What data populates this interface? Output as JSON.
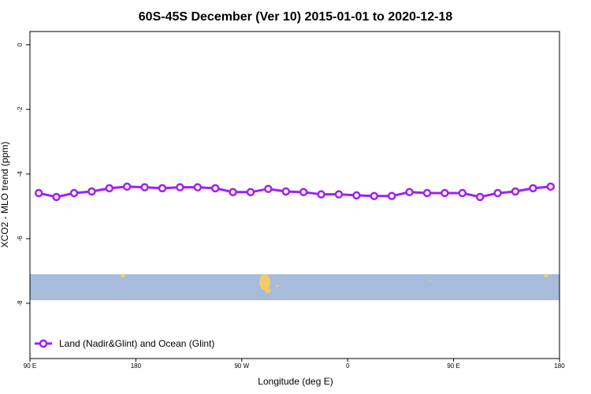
{
  "chart_data": {
    "type": "line",
    "title": "60S-45S December (Ver 10)   2015-01-01 to 2020-12-18",
    "x_label": "Longitude (deg E)",
    "y_label": "XCO2 - MLO trend (ppm)",
    "x": [
      97.5,
      112.5,
      127.5,
      142.5,
      157.5,
      172.5,
      187.5,
      202.5,
      217.5,
      232.5,
      247.5,
      262.5,
      277.5,
      292.5,
      307.5,
      322.5,
      337.5,
      352.5,
      367.5,
      382.5,
      397.5,
      412.5,
      427.5,
      442.5,
      457.5,
      472.5,
      487.5,
      502.5,
      517.5,
      532.5
    ],
    "series": [
      {
        "name": "Land (Nadir&Glint) and Ocean (Glint)",
        "color": "#a020f0",
        "values": [
          -4.59,
          -4.71,
          -4.59,
          -4.54,
          -4.44,
          -4.39,
          -4.41,
          -4.44,
          -4.41,
          -4.41,
          -4.44,
          -4.56,
          -4.56,
          -4.46,
          -4.54,
          -4.56,
          -4.63,
          -4.63,
          -4.66,
          -4.68,
          -4.68,
          -4.56,
          -4.59,
          -4.59,
          -4.59,
          -4.71,
          -4.59,
          -4.54,
          -4.44,
          -4.39
        ]
      }
    ],
    "xlim": [
      90,
      540
    ],
    "xticks": [
      {
        "value": 90,
        "label": "90 E"
      },
      180,
      {
        "value": 270,
        "label": "90 W"
      },
      {
        "value": 360,
        "label": "0"
      },
      {
        "value": 450,
        "label": "90 E"
      },
      {
        "value": 540,
        "label": "180"
      }
    ],
    "ylim": [
      0.41,
      -9.71
    ],
    "yticks": [
      0,
      -2,
      -4,
      -6,
      -8
    ],
    "legend": "bottom-left"
  }
}
